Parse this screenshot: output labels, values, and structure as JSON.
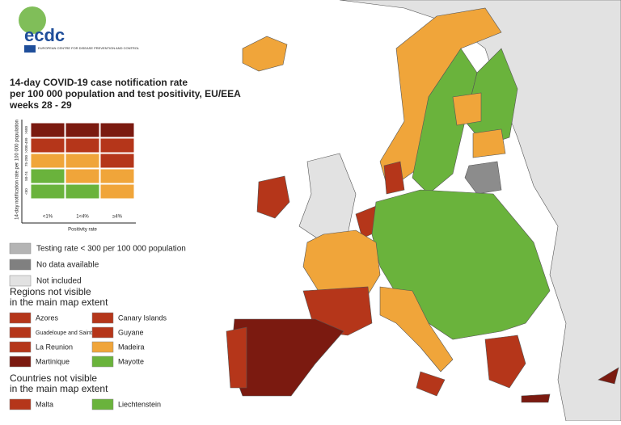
{
  "logo": {
    "text": "ecdc",
    "subtitle": "EUROPEAN CENTRE FOR DISEASE PREVENTION AND CONTROL"
  },
  "title": [
    "14-day COVID-19 case notification rate",
    "per 100 000 population and test positivity, EU/EEA",
    "weeks 28 - 29"
  ],
  "matrix": {
    "y_axis_title": "14-day notification rate per 100 000 population",
    "x_axis_title": "Positivity rate",
    "row_labels": [
      ">500",
      ">200-499",
      "75-200",
      "50-74",
      "<50"
    ],
    "column_labels": [
      "<1%",
      "1<4%",
      "≥4%"
    ],
    "cells": [
      [
        "#7b1a10",
        "#7b1a10",
        "#7b1a10"
      ],
      [
        "#b5361a",
        "#b5361a",
        "#b5361a"
      ],
      [
        "#f0a53a",
        "#f0a53a",
        "#b5361a"
      ],
      [
        "#6ab33c",
        "#f0a53a",
        "#f0a53a"
      ],
      [
        "#6ab33c",
        "#6ab33c",
        "#f0a53a"
      ]
    ]
  },
  "legend": [
    {
      "label": "Testing rate < 300 per 100 000 population",
      "color": "#b4b4b4"
    },
    {
      "label": "No data available",
      "color": "#808080"
    },
    {
      "label": "Not included",
      "color": "#e2e2e2"
    }
  ],
  "regions": {
    "heading": [
      "Regions not visible",
      "in the main map extent"
    ],
    "items": [
      {
        "label": "Azores",
        "color": "#b5361a"
      },
      {
        "label": "Canary Islands",
        "color": "#b5361a"
      },
      {
        "label": "Guadeloupe and Saint Martin",
        "color": "#b5361a"
      },
      {
        "label": "Guyane",
        "color": "#b5361a"
      },
      {
        "label": "La Reunion",
        "color": "#b5361a"
      },
      {
        "label": "Madeira",
        "color": "#f0a53a"
      },
      {
        "label": "Martinique",
        "color": "#7b1a10"
      },
      {
        "label": "Mayotte",
        "color": "#6ab33c"
      }
    ]
  },
  "countries": {
    "heading": [
      "Countries not visible",
      "in the main map extent"
    ],
    "items": [
      {
        "label": "Malta",
        "color": "#b5361a"
      },
      {
        "label": "Liechtenstein",
        "color": "#6ab33c"
      }
    ]
  }
}
